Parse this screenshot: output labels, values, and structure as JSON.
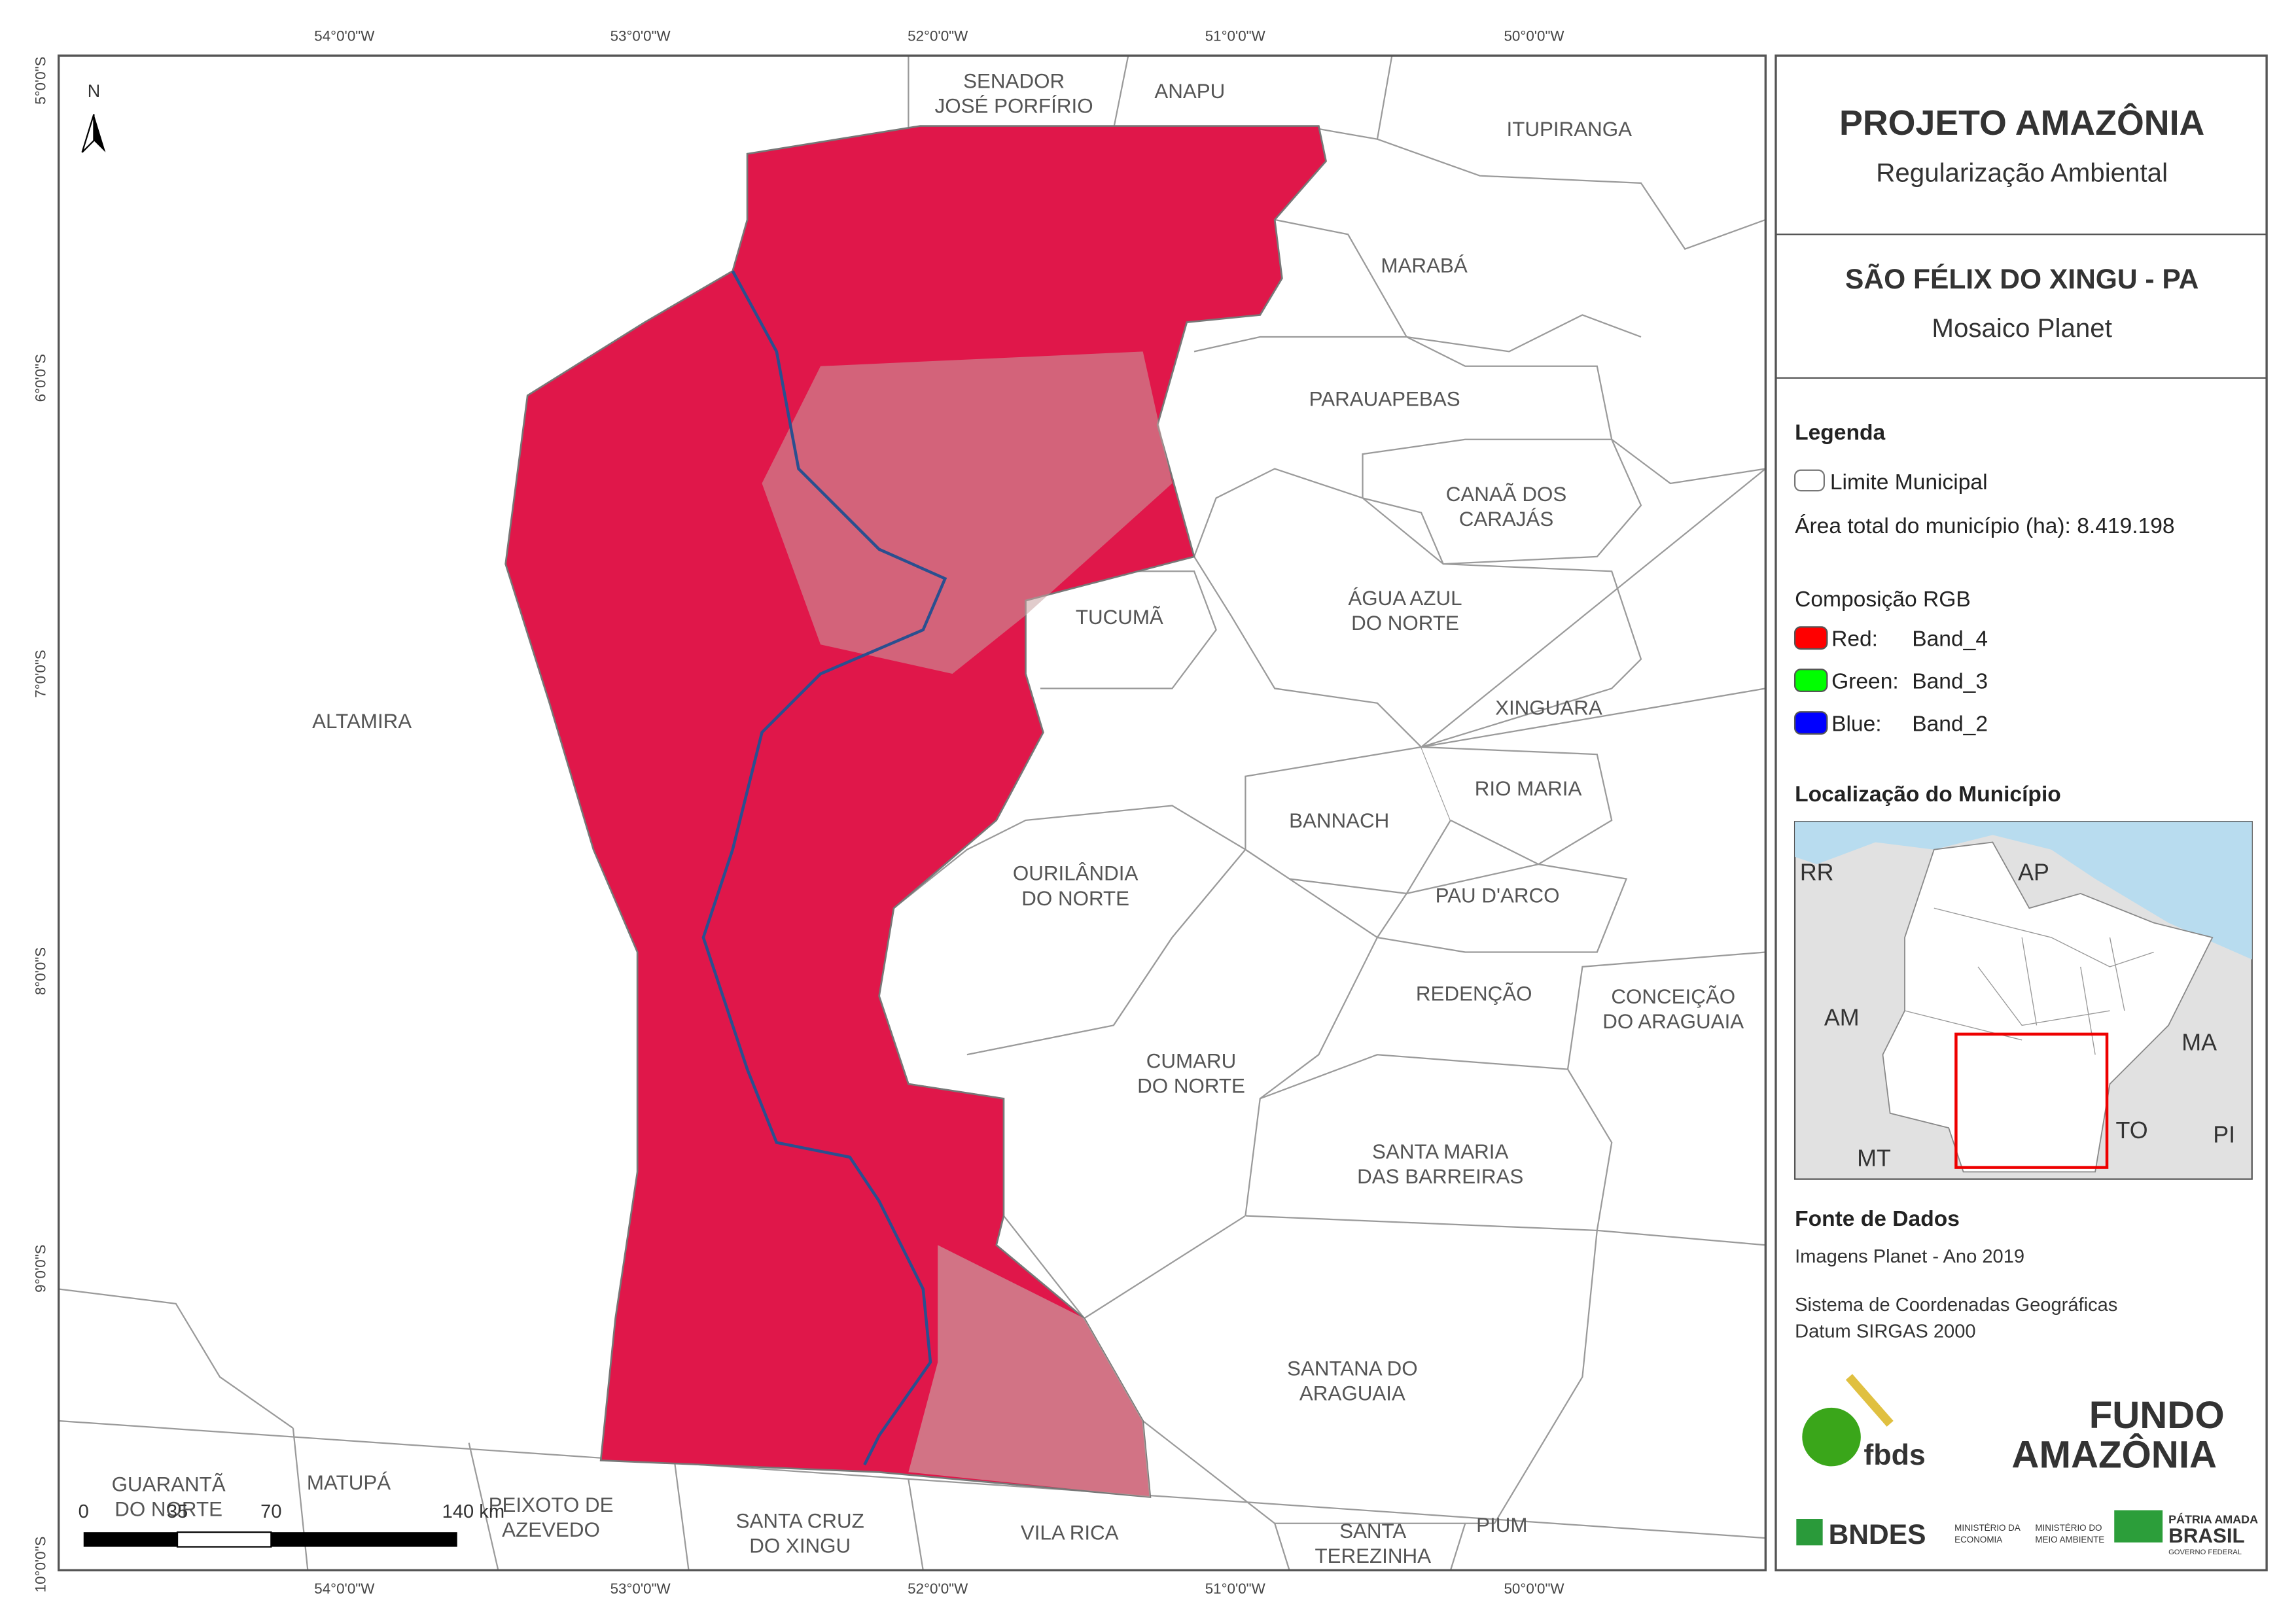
{
  "map": {
    "coords": {
      "top": [
        "54°0'0\"W",
        "53°0'0\"W",
        "52°0'0\"W",
        "51°0'0\"W",
        "50°0'0\"W"
      ],
      "bottom": [
        "54°0'0\"W",
        "53°0'0\"W",
        "52°0'0\"W",
        "51°0'0\"W",
        "50°0'0\"W"
      ],
      "left": [
        "5°0'0\"S",
        "6°0'0\"S",
        "7°0'0\"S",
        "8°0'0\"S",
        "9°0'0\"S",
        "10°0'0\"S"
      ]
    },
    "north": "N",
    "places": [
      {
        "lines": [
          "SENADOR",
          "JOSÉ PORFÍRIO"
        ]
      },
      {
        "lines": [
          "ANAPU"
        ]
      },
      {
        "lines": [
          "ITUPIRANGA"
        ]
      },
      {
        "lines": [
          "MARABÁ"
        ]
      },
      {
        "lines": [
          "PARAUAPEBAS"
        ]
      },
      {
        "lines": [
          "CANAÃ DOS",
          "CARAJÁS"
        ]
      },
      {
        "lines": [
          "TUCUMÃ"
        ]
      },
      {
        "lines": [
          "ÁGUA AZUL",
          "DO NORTE"
        ]
      },
      {
        "lines": [
          "XINGUARA"
        ]
      },
      {
        "lines": [
          "ALTAMIRA"
        ]
      },
      {
        "lines": [
          "RIO MARIA"
        ]
      },
      {
        "lines": [
          "BANNACH"
        ]
      },
      {
        "lines": [
          "OURILÂNDIA",
          "DO NORTE"
        ]
      },
      {
        "lines": [
          "PAU D'ARCO"
        ]
      },
      {
        "lines": [
          "REDENÇÃO"
        ]
      },
      {
        "lines": [
          "CONCEIÇÃO",
          "DO ARAGUAIA"
        ]
      },
      {
        "lines": [
          "CUMARU",
          "DO NORTE"
        ]
      },
      {
        "lines": [
          "SANTA MARIA",
          "DAS BARREIRAS"
        ]
      },
      {
        "lines": [
          "SANTANA DO",
          "ARAGUAIA"
        ]
      },
      {
        "lines": [
          "GUARANTÃ",
          "DO NORTE"
        ]
      },
      {
        "lines": [
          "MATUPÁ"
        ]
      },
      {
        "lines": [
          "PEIXOTO DE",
          "AZEVEDO"
        ]
      },
      {
        "lines": [
          "SANTA CRUZ",
          "DO XINGU"
        ]
      },
      {
        "lines": [
          "VILA RICA"
        ]
      },
      {
        "lines": [
          "SANTA",
          "TEREZINHA"
        ]
      },
      {
        "lines": [
          "PIUM"
        ]
      }
    ],
    "scale": [
      "0",
      "35",
      "70",
      "140 km"
    ]
  },
  "panel": {
    "title": "PROJETO AMAZÔNIA",
    "subtitle": "Regularização Ambiental",
    "municipality": "SÃO FÉLIX DO XINGU - PA",
    "mosaic": "Mosaico Planet",
    "legend_title": "Legenda",
    "boundary": "Limite Municipal",
    "area": "Área total do município (ha): 8.419.198",
    "rgb_title": "Composição RGB",
    "rgb": [
      {
        "channel": "Red:",
        "band": "Band_4",
        "color": "#ff0000"
      },
      {
        "channel": "Green:",
        "band": "Band_3",
        "color": "#00ff00"
      },
      {
        "channel": "Blue:",
        "band": "Band_2",
        "color": "#0000ff"
      }
    ],
    "location_title": "Localização do Município",
    "inset_labels": [
      "RR",
      "AP",
      "AM",
      "MA",
      "TO",
      "MT",
      "PI"
    ],
    "sources_title": "Fonte de Dados",
    "sources": [
      "Imagens Planet - Ano 2019",
      "Sistema de Coordenadas Geográficas",
      "Datum SIRGAS 2000"
    ],
    "logos": {
      "fbds": "fbds",
      "fundo": "FUNDO",
      "amazonia": "AMAZÔNIA",
      "bndes": "BNDES",
      "min_economia": [
        "MINISTÉRIO DA",
        "ECONOMIA"
      ],
      "min_ambiente": [
        "MINISTÉRIO DO",
        "MEIO AMBIENTE"
      ],
      "patria": "PÁTRIA AMADA",
      "brasil": "BRASIL",
      "governo": "GOVERNO FEDERAL"
    }
  }
}
